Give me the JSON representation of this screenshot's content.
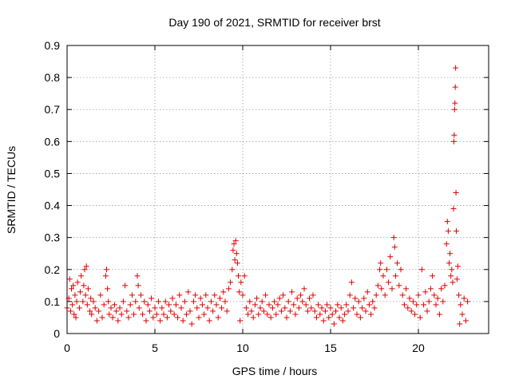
{
  "chart_data": {
    "type": "scatter",
    "title": "Day 190 of 2021, SRMTID for receiver brst",
    "xlabel": "GPS time / hours",
    "ylabel": "SRMTID / TECUs",
    "xlim": [
      0,
      24
    ],
    "ylim": [
      0,
      0.9
    ],
    "xticks": [
      0,
      5,
      10,
      15,
      20
    ],
    "xtick_labels": [
      "0",
      "5",
      "10",
      "15",
      "20"
    ],
    "yticks": [
      0,
      0.1,
      0.2,
      0.3,
      0.4,
      0.5,
      0.6,
      0.7,
      0.8,
      0.9
    ],
    "ytick_labels": [
      "0",
      "0.1",
      "0.2",
      "0.3",
      "0.4",
      "0.5",
      "0.6",
      "0.7",
      "0.8",
      "0.9"
    ],
    "grid": true,
    "marker": "+",
    "marker_color": "#e00000",
    "series": [
      {
        "name": "SRMTID",
        "points": [
          [
            0.0,
            0.08
          ],
          [
            0.1,
            0.11
          ],
          [
            0.15,
            0.17
          ],
          [
            0.2,
            0.07
          ],
          [
            0.25,
            0.14
          ],
          [
            0.3,
            0.09
          ],
          [
            0.35,
            0.15
          ],
          [
            0.4,
            0.06
          ],
          [
            0.45,
            0.12
          ],
          [
            0.5,
            0.05
          ],
          [
            0.55,
            0.1
          ],
          [
            0.6,
            0.16
          ],
          [
            0.7,
            0.08
          ],
          [
            0.75,
            0.13
          ],
          [
            0.8,
            0.18
          ],
          [
            0.9,
            0.1
          ],
          [
            0.95,
            0.15
          ],
          [
            1.0,
            0.2
          ],
          [
            1.05,
            0.12
          ],
          [
            1.1,
            0.21
          ],
          [
            1.15,
            0.09
          ],
          [
            1.2,
            0.14
          ],
          [
            1.3,
            0.07
          ],
          [
            1.35,
            0.11
          ],
          [
            1.4,
            0.06
          ],
          [
            1.5,
            0.1
          ],
          [
            1.6,
            0.08
          ],
          [
            1.7,
            0.04
          ],
          [
            1.8,
            0.07
          ],
          [
            1.9,
            0.12
          ],
          [
            2.0,
            0.05
          ],
          [
            2.1,
            0.09
          ],
          [
            2.2,
            0.18
          ],
          [
            2.25,
            0.2
          ],
          [
            2.3,
            0.14
          ],
          [
            2.35,
            0.1
          ],
          [
            2.4,
            0.06
          ],
          [
            2.5,
            0.08
          ],
          [
            2.6,
            0.05
          ],
          [
            2.7,
            0.09
          ],
          [
            2.8,
            0.07
          ],
          [
            2.9,
            0.04
          ],
          [
            3.0,
            0.08
          ],
          [
            3.1,
            0.06
          ],
          [
            3.2,
            0.1
          ],
          [
            3.3,
            0.15
          ],
          [
            3.4,
            0.07
          ],
          [
            3.5,
            0.05
          ],
          [
            3.6,
            0.09
          ],
          [
            3.7,
            0.12
          ],
          [
            3.8,
            0.06
          ],
          [
            3.9,
            0.1
          ],
          [
            4.0,
            0.18
          ],
          [
            4.05,
            0.15
          ],
          [
            4.1,
            0.08
          ],
          [
            4.2,
            0.12
          ],
          [
            4.3,
            0.06
          ],
          [
            4.4,
            0.1
          ],
          [
            4.5,
            0.04
          ],
          [
            4.6,
            0.09
          ],
          [
            4.7,
            0.07
          ],
          [
            4.8,
            0.11
          ],
          [
            4.9,
            0.05
          ],
          [
            5.0,
            0.08
          ],
          [
            5.1,
            0.06
          ],
          [
            5.2,
            0.1
          ],
          [
            5.3,
            0.04
          ],
          [
            5.4,
            0.08
          ],
          [
            5.5,
            0.06
          ],
          [
            5.6,
            0.1
          ],
          [
            5.7,
            0.05
          ],
          [
            5.8,
            0.09
          ],
          [
            5.9,
            0.07
          ],
          [
            6.0,
            0.11
          ],
          [
            6.1,
            0.06
          ],
          [
            6.2,
            0.09
          ],
          [
            6.3,
            0.05
          ],
          [
            6.4,
            0.12
          ],
          [
            6.5,
            0.08
          ],
          [
            6.6,
            0.04
          ],
          [
            6.7,
            0.1
          ],
          [
            6.8,
            0.06
          ],
          [
            6.9,
            0.13
          ],
          [
            7.0,
            0.07
          ],
          [
            7.1,
            0.03
          ],
          [
            7.2,
            0.1
          ],
          [
            7.3,
            0.12
          ],
          [
            7.4,
            0.08
          ],
          [
            7.5,
            0.05
          ],
          [
            7.6,
            0.11
          ],
          [
            7.7,
            0.09
          ],
          [
            7.8,
            0.06
          ],
          [
            7.9,
            0.12
          ],
          [
            8.0,
            0.08
          ],
          [
            8.1,
            0.04
          ],
          [
            8.2,
            0.1
          ],
          [
            8.3,
            0.07
          ],
          [
            8.4,
            0.12
          ],
          [
            8.5,
            0.09
          ],
          [
            8.6,
            0.05
          ],
          [
            8.7,
            0.11
          ],
          [
            8.8,
            0.08
          ],
          [
            8.9,
            0.13
          ],
          [
            9.0,
            0.1
          ],
          [
            9.1,
            0.07
          ],
          [
            9.2,
            0.14
          ],
          [
            9.3,
            0.16
          ],
          [
            9.4,
            0.2
          ],
          [
            9.45,
            0.26
          ],
          [
            9.5,
            0.28
          ],
          [
            9.55,
            0.23
          ],
          [
            9.6,
            0.29
          ],
          [
            9.65,
            0.25
          ],
          [
            9.7,
            0.22
          ],
          [
            9.75,
            0.18
          ],
          [
            9.8,
            0.13
          ],
          [
            9.85,
            0.04
          ],
          [
            9.9,
            0.16
          ],
          [
            10.0,
            0.12
          ],
          [
            10.1,
            0.18
          ],
          [
            10.2,
            0.08
          ],
          [
            10.3,
            0.06
          ],
          [
            10.4,
            0.1
          ],
          [
            10.5,
            0.07
          ],
          [
            10.6,
            0.05
          ],
          [
            10.7,
            0.09
          ],
          [
            10.8,
            0.11
          ],
          [
            10.9,
            0.06
          ],
          [
            11.0,
            0.08
          ],
          [
            11.1,
            0.1
          ],
          [
            11.2,
            0.07
          ],
          [
            11.3,
            0.12
          ],
          [
            11.4,
            0.06
          ],
          [
            11.5,
            0.09
          ],
          [
            11.6,
            0.05
          ],
          [
            11.7,
            0.08
          ],
          [
            11.8,
            0.1
          ],
          [
            11.9,
            0.06
          ],
          [
            12.0,
            0.09
          ],
          [
            12.1,
            0.11
          ],
          [
            12.2,
            0.07
          ],
          [
            12.3,
            0.12
          ],
          [
            12.4,
            0.08
          ],
          [
            12.5,
            0.05
          ],
          [
            12.6,
            0.1
          ],
          [
            12.7,
            0.07
          ],
          [
            12.8,
            0.13
          ],
          [
            12.9,
            0.09
          ],
          [
            13.0,
            0.06
          ],
          [
            13.1,
            0.11
          ],
          [
            13.2,
            0.08
          ],
          [
            13.3,
            0.12
          ],
          [
            13.4,
            0.1
          ],
          [
            13.5,
            0.14
          ],
          [
            13.6,
            0.09
          ],
          [
            13.7,
            0.07
          ],
          [
            13.8,
            0.11
          ],
          [
            13.9,
            0.08
          ],
          [
            14.0,
            0.12
          ],
          [
            14.1,
            0.07
          ],
          [
            14.2,
            0.05
          ],
          [
            14.3,
            0.09
          ],
          [
            14.4,
            0.06
          ],
          [
            14.5,
            0.08
          ],
          [
            14.6,
            0.04
          ],
          [
            14.7,
            0.07
          ],
          [
            14.8,
            0.09
          ],
          [
            14.9,
            0.05
          ],
          [
            15.0,
            0.08
          ],
          [
            15.1,
            0.06
          ],
          [
            15.2,
            0.03
          ],
          [
            15.3,
            0.07
          ],
          [
            15.4,
            0.09
          ],
          [
            15.5,
            0.05
          ],
          [
            15.6,
            0.08
          ],
          [
            15.7,
            0.04
          ],
          [
            15.8,
            0.06
          ],
          [
            15.9,
            0.09
          ],
          [
            16.0,
            0.07
          ],
          [
            16.1,
            0.12
          ],
          [
            16.2,
            0.16
          ],
          [
            16.3,
            0.08
          ],
          [
            16.4,
            0.11
          ],
          [
            16.5,
            0.06
          ],
          [
            16.6,
            0.1
          ],
          [
            16.7,
            0.05
          ],
          [
            16.8,
            0.08
          ],
          [
            16.9,
            0.11
          ],
          [
            17.0,
            0.07
          ],
          [
            17.1,
            0.13
          ],
          [
            17.2,
            0.09
          ],
          [
            17.3,
            0.06
          ],
          [
            17.4,
            0.1
          ],
          [
            17.5,
            0.08
          ],
          [
            17.6,
            0.12
          ],
          [
            17.7,
            0.15
          ],
          [
            17.8,
            0.2
          ],
          [
            17.85,
            0.22
          ],
          [
            17.9,
            0.14
          ],
          [
            18.0,
            0.18
          ],
          [
            18.1,
            0.12
          ],
          [
            18.2,
            0.2
          ],
          [
            18.3,
            0.16
          ],
          [
            18.4,
            0.24
          ],
          [
            18.5,
            0.14
          ],
          [
            18.6,
            0.3
          ],
          [
            18.65,
            0.27
          ],
          [
            18.7,
            0.18
          ],
          [
            18.8,
            0.22
          ],
          [
            18.9,
            0.15
          ],
          [
            19.0,
            0.2
          ],
          [
            19.1,
            0.12
          ],
          [
            19.2,
            0.09
          ],
          [
            19.3,
            0.14
          ],
          [
            19.4,
            0.08
          ],
          [
            19.5,
            0.11
          ],
          [
            19.6,
            0.07
          ],
          [
            19.7,
            0.1
          ],
          [
            19.8,
            0.06
          ],
          [
            19.9,
            0.09
          ],
          [
            20.0,
            0.12
          ],
          [
            20.1,
            0.05
          ],
          [
            20.2,
            0.2
          ],
          [
            20.3,
            0.09
          ],
          [
            20.4,
            0.13
          ],
          [
            20.5,
            0.07
          ],
          [
            20.6,
            0.1
          ],
          [
            20.7,
            0.14
          ],
          [
            20.8,
            0.18
          ],
          [
            20.9,
            0.12
          ],
          [
            21.0,
            0.09
          ],
          [
            21.1,
            0.11
          ],
          [
            21.2,
            0.06
          ],
          [
            21.3,
            0.14
          ],
          [
            21.4,
            0.1
          ],
          [
            21.5,
            0.15
          ],
          [
            21.6,
            0.28
          ],
          [
            21.65,
            0.35
          ],
          [
            21.7,
            0.32
          ],
          [
            21.75,
            0.22
          ],
          [
            21.8,
            0.25
          ],
          [
            21.85,
            0.18
          ],
          [
            21.9,
            0.2
          ],
          [
            21.95,
            0.16
          ],
          [
            22.0,
            0.39
          ],
          [
            22.02,
            0.6
          ],
          [
            22.04,
            0.62
          ],
          [
            22.06,
            0.7
          ],
          [
            22.08,
            0.72
          ],
          [
            22.1,
            0.77
          ],
          [
            22.12,
            0.83
          ],
          [
            22.14,
            0.44
          ],
          [
            22.16,
            0.32
          ],
          [
            22.2,
            0.17
          ],
          [
            22.25,
            0.21
          ],
          [
            22.3,
            0.12
          ],
          [
            22.35,
            0.03
          ],
          [
            22.4,
            0.09
          ],
          [
            22.5,
            0.06
          ],
          [
            22.6,
            0.11
          ],
          [
            22.7,
            0.04
          ],
          [
            22.8,
            0.1
          ]
        ]
      }
    ]
  }
}
